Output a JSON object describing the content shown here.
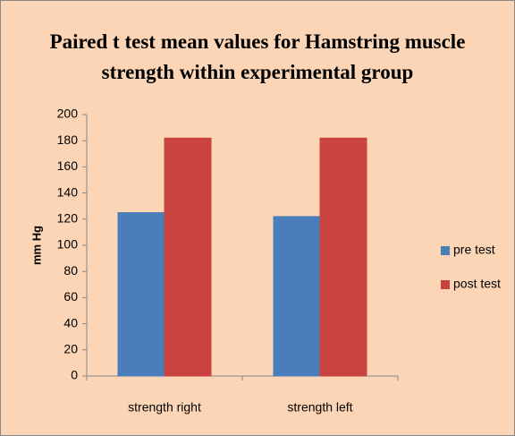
{
  "chart_data": {
    "type": "bar",
    "title": "Paired t test mean values for Hamstring muscle strength within experimental group",
    "y_label": "mm Hg",
    "categories": [
      "strength right",
      "strength left"
    ],
    "series": [
      {
        "name": "pre test",
        "color": "#4a7ebb",
        "values": [
          125,
          122
        ]
      },
      {
        "name": "post test",
        "color": "#c94341",
        "values": [
          182,
          182
        ]
      }
    ],
    "ylim": [
      0,
      200
    ],
    "yticks": [
      0,
      20,
      40,
      60,
      80,
      100,
      120,
      140,
      160,
      180,
      200
    ],
    "legend": "right"
  }
}
